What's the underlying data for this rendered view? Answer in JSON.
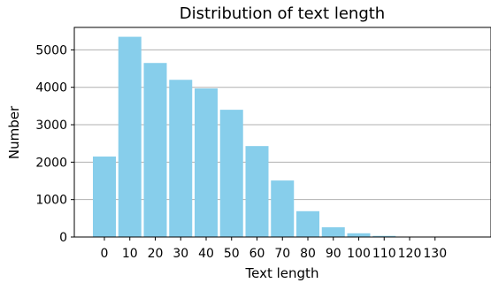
{
  "chart_data": {
    "type": "bar",
    "title": "Distribution of text length",
    "xlabel": "Text length",
    "ylabel": "Number",
    "categories": [
      "0",
      "10",
      "20",
      "30",
      "40",
      "50",
      "60",
      "70",
      "80",
      "90",
      "100",
      "110",
      "120",
      "130"
    ],
    "values": [
      2150,
      5350,
      4650,
      4200,
      3970,
      3400,
      2430,
      1510,
      690,
      260,
      100,
      30,
      8,
      3
    ],
    "ylim": [
      0,
      5600
    ],
    "yticks": [
      0,
      1000,
      2000,
      3000,
      4000,
      5000
    ],
    "grid": "horizontal",
    "bar_color": "#87ceeb",
    "grid_color": "#b0b0b0"
  }
}
